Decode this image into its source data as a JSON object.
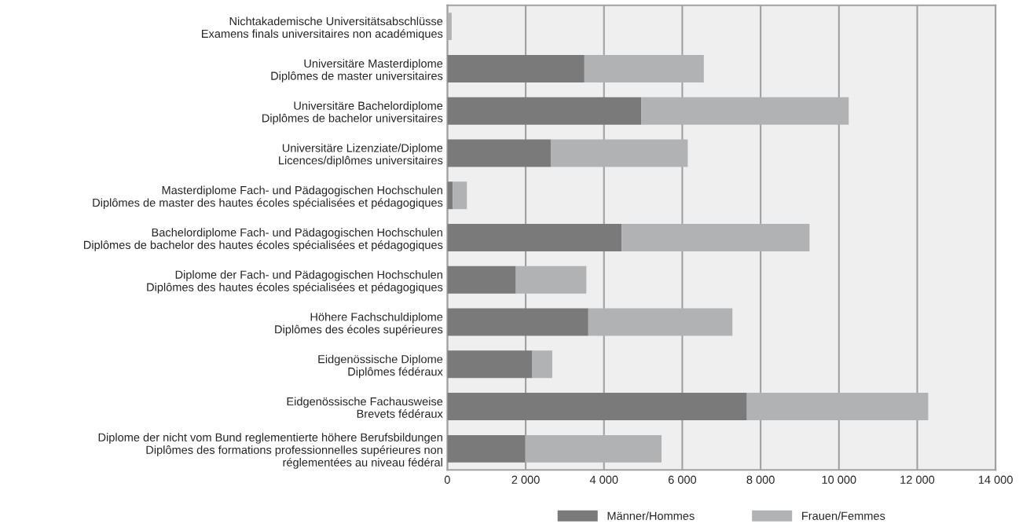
{
  "chart_data": {
    "type": "bar",
    "orientation": "horizontal",
    "stacked": true,
    "categories": [
      "Nichtakademische Universitätsabschlüsse\nExamens finals universitaires non académiques",
      "Universitäre Masterdiplome\nDiplômes de master universitaires",
      "Universitäre Bachelordiplome\nDiplômes de bachelor universitaires",
      "Universitäre Lizenziate/Diplome\nLicences/diplômes universitaires",
      "Masterdiplome Fach- und Pädagogischen Hochschulen\nDiplômes de master des hautes écoles spécialisées et pédagogiques",
      "Bachelordiplome Fach- und Pädagogischen Hochschulen\nDiplômes de bachelor des hautes écoles spécialisées et pédagogiques",
      "Diplome der Fach- und Pädagogischen Hochschulen\nDiplômes des hautes écoles spécialisées et pédagogiques",
      "Höhere Fachschuldiplome\nDiplômes des écoles supérieures",
      "Eidgenössische Diplome\nDiplômes fédéraux",
      "Eidgenössische Fachausweise\nBrevets fédéraux",
      "Diplome der nicht vom Bund reglementierte höhere Berufsbildungen\nDiplômes des formations professionnelles supérieures non\nréglementées au niveau fédéral"
    ],
    "series": [
      {
        "name": "Männer/Hommes",
        "color": "#7a7a7a",
        "values": [
          0,
          3500,
          4950,
          2640,
          140,
          4450,
          1750,
          3600,
          2170,
          7650,
          1990
        ]
      },
      {
        "name": "Frauen/Femmes",
        "color": "#b1b2b3",
        "values": [
          110,
          3050,
          5300,
          3500,
          360,
          4800,
          1800,
          3680,
          510,
          4630,
          3480
        ]
      }
    ],
    "xlim": [
      0,
      14000
    ],
    "xticks": [
      0,
      {
        "value": 2000,
        "label": "2 000"
      },
      {
        "value": 4000,
        "label": "4 000"
      },
      {
        "value": 6000,
        "label": "6 000"
      },
      {
        "value": 8000,
        "label": "8 000"
      },
      {
        "value": 10000,
        "label": "10 000"
      },
      {
        "value": 12000,
        "label": "12 000"
      },
      {
        "value": 14000,
        "label": "14 000"
      }
    ],
    "grid": "x",
    "legend": "bottom"
  }
}
